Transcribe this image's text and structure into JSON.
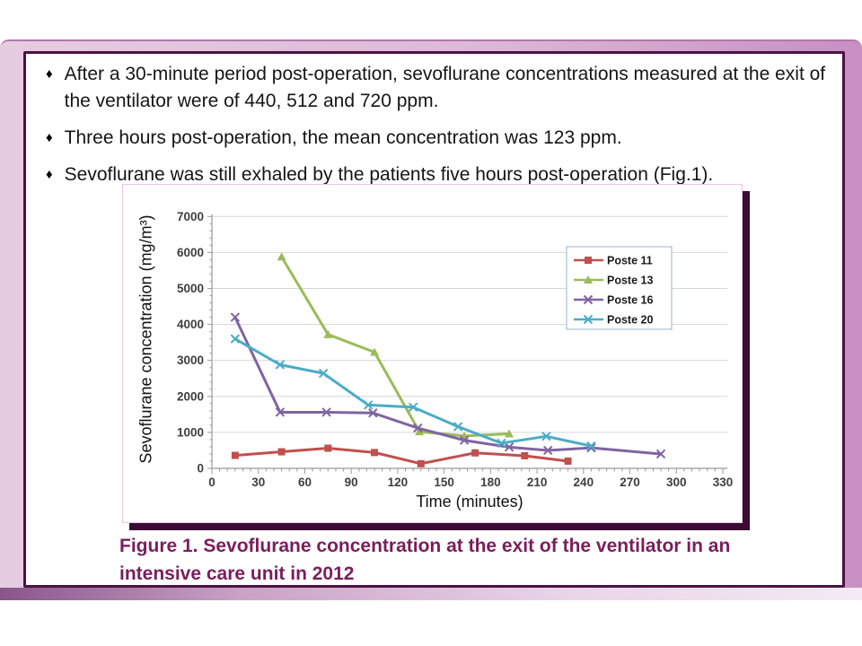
{
  "slide": {
    "bullet_glyph": "♦",
    "bullets": [
      "After a 30-minute period post-operation, sevoflurane concentrations measured at the exit of the ventilator were of 440, 512 and 720 ppm.",
      "Three hours post-operation, the mean concentration was 123 ppm.",
      "Sevoflurane was still exhaled by the patients five hours post-operation (Fig.1)."
    ],
    "figure": {
      "caption": "Figure 1. Sevoflurane concentration at the exit of the ventilator in an intensive care unit in 2012"
    }
  },
  "chart_data": {
    "type": "line",
    "title": "",
    "xlabel": "Time (minutes)",
    "ylabel": "Sevoflurane concentration (mg/m³)",
    "xlim": [
      0,
      333
    ],
    "ylim": [
      0,
      7000
    ],
    "x_ticks": [
      0,
      30,
      60,
      90,
      120,
      150,
      180,
      210,
      240,
      270,
      300,
      330
    ],
    "y_ticks": [
      0,
      1000,
      2000,
      3000,
      4000,
      5000,
      6000,
      7000
    ],
    "x_minor_tick_step": 5,
    "y_minor_tick_step": 200,
    "grid": "horizontal",
    "legend_position": "inside-upper-right",
    "colors": {
      "axis": "#9a9a9a",
      "gridline": "#d6d6d6",
      "tick_label": "#3f3f3f",
      "legend_border": "#9ab3cd",
      "legend_text": "#1a1a1a"
    },
    "series": [
      {
        "name": "Poste 11",
        "color": "#C0504D",
        "marker": "square",
        "points": [
          [
            15,
            360
          ],
          [
            45,
            460
          ],
          [
            75,
            560
          ],
          [
            105,
            440
          ],
          [
            135,
            130
          ],
          [
            170,
            430
          ],
          [
            202,
            350
          ],
          [
            230,
            200
          ]
        ]
      },
      {
        "name": "Poste 13",
        "color": "#9BBB59",
        "marker": "triangle",
        "points": [
          [
            45,
            5880
          ],
          [
            75,
            3720
          ],
          [
            105,
            3230
          ],
          [
            134,
            1020
          ],
          [
            163,
            900
          ],
          [
            192,
            960
          ]
        ]
      },
      {
        "name": "Poste 16",
        "color": "#8064A2",
        "marker": "x",
        "points": [
          [
            15,
            4200
          ],
          [
            44,
            1560
          ],
          [
            74,
            1560
          ],
          [
            104,
            1540
          ],
          [
            133,
            1120
          ],
          [
            163,
            780
          ],
          [
            192,
            590
          ],
          [
            217,
            500
          ],
          [
            245,
            570
          ],
          [
            290,
            400
          ]
        ]
      },
      {
        "name": "Poste 20",
        "color": "#4BACC6",
        "marker": "x",
        "points": [
          [
            15,
            3600
          ],
          [
            44,
            2880
          ],
          [
            72,
            2640
          ],
          [
            101,
            1760
          ],
          [
            130,
            1700
          ],
          [
            159,
            1160
          ],
          [
            187,
            700
          ],
          [
            216,
            890
          ],
          [
            245,
            620
          ]
        ]
      }
    ]
  }
}
